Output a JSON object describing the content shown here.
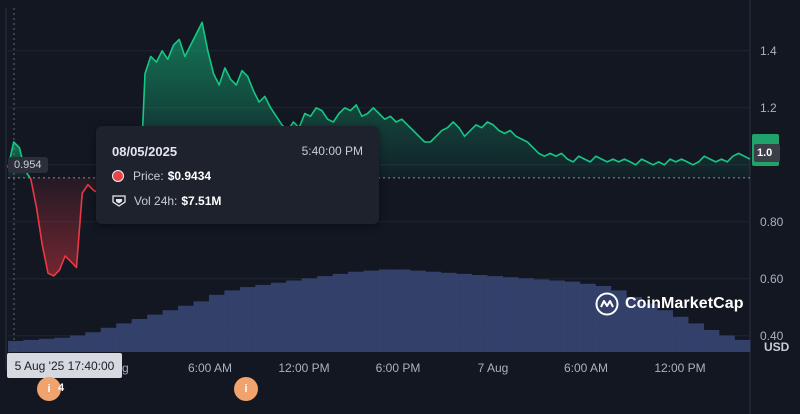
{
  "chart_data": {
    "type": "area",
    "currency_label": "USD",
    "y_ticks": [
      "1.4",
      "1.2",
      "1.0",
      "0.80",
      "0.60",
      "0.40"
    ],
    "ylim": [
      0.35,
      1.55
    ],
    "x_tick_labels": [
      "Aug",
      "6:00 AM",
      "12:00 PM",
      "6:00 PM",
      "7 Aug",
      "6:00 AM",
      "12:00 PM"
    ],
    "reference_price": 0.954,
    "last_price_label": "1.0",
    "series": [
      {
        "values": [
          0.99,
          1.08,
          1.06,
          0.98,
          0.95,
          0.85,
          0.72,
          0.62,
          0.61,
          0.63,
          0.68,
          0.66,
          0.64,
          0.9,
          0.93,
          0.91,
          0.9,
          0.88,
          0.85,
          0.8,
          0.84,
          0.87,
          0.86,
          0.85,
          1.32,
          1.38,
          1.36,
          1.4,
          1.37,
          1.42,
          1.44,
          1.38,
          1.42,
          1.46,
          1.5,
          1.4,
          1.32,
          1.28,
          1.34,
          1.3,
          1.28,
          1.33,
          1.31,
          1.26,
          1.22,
          1.24,
          1.2,
          1.17,
          1.14,
          1.12,
          1.15,
          1.13,
          1.18,
          1.17,
          1.2,
          1.19,
          1.16,
          1.15,
          1.18,
          1.2,
          1.19,
          1.21,
          1.17,
          1.18,
          1.2,
          1.18,
          1.16,
          1.17,
          1.15,
          1.16,
          1.14,
          1.12,
          1.1,
          1.08,
          1.08,
          1.1,
          1.12,
          1.13,
          1.15,
          1.13,
          1.1,
          1.12,
          1.14,
          1.13,
          1.15,
          1.14,
          1.12,
          1.11,
          1.12,
          1.1,
          1.09,
          1.08,
          1.06,
          1.04,
          1.03,
          1.04,
          1.03,
          1.04,
          1.02,
          1.01,
          1.03,
          1.02,
          1.01,
          1.03,
          1.02,
          1.01,
          1.02,
          1.01,
          1.02,
          1.01,
          1.0,
          1.02,
          1.01,
          1.0,
          1.01,
          1.0,
          1.02,
          1.01,
          1.02,
          1.01,
          1.0,
          1.01,
          1.03,
          1.02,
          1.01,
          1.02,
          1.01,
          1.03,
          1.04,
          1.03,
          1.02
        ]
      }
    ],
    "volume_millions": [
      1.0,
      1.1,
      1.2,
      1.3,
      1.5,
      1.8,
      2.2,
      2.6,
      3.0,
      3.4,
      3.8,
      4.2,
      4.6,
      5.2,
      5.6,
      5.9,
      6.1,
      6.3,
      6.5,
      6.7,
      6.9,
      7.1,
      7.3,
      7.4,
      7.5,
      7.5,
      7.4,
      7.3,
      7.2,
      7.1,
      7.0,
      6.9,
      6.8,
      6.7,
      6.6,
      6.5,
      6.4,
      6.2,
      6.0,
      5.6,
      5.0,
      4.4,
      3.8,
      3.2,
      2.6,
      2.0,
      1.5,
      1.1
    ],
    "up_color": "#16c784",
    "down_color": "#ea3943",
    "volume_color": "#3a4876"
  },
  "tooltip": {
    "date": "08/05/2025",
    "time": "5:40:00 PM",
    "price_label": "Price:",
    "price_value": "$0.9434",
    "vol_label": "Vol 24h:",
    "vol_value": "$7.51M"
  },
  "crosshair_x_label": "5 Aug '25 17:40:00",
  "events": [
    {
      "icon": "i",
      "count": "4"
    },
    {
      "icon": "i"
    }
  ],
  "logo_text": "CoinMarketCap"
}
